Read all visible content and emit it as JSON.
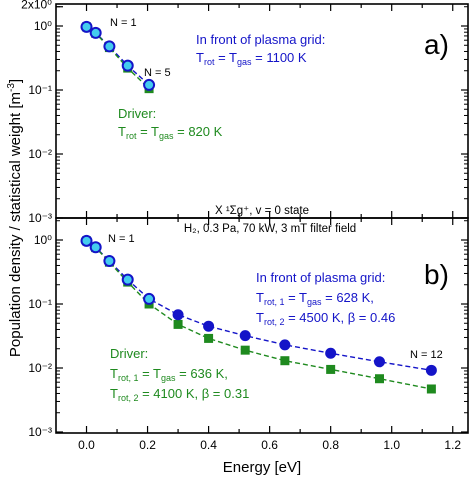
{
  "figure": {
    "ylabel": "Population density / statistical weight [m",
    "ylabel_unit_sup": "-3",
    "ylabel_tail": "]",
    "xlabel": "Energy [eV]",
    "center_title_line1": "X ¹Σg⁺, v = 0 state",
    "center_title_line2": "H₂, 0.3 Pa, 70 kW, 3 mT filter field",
    "colors": {
      "blue": "#1414c8",
      "green": "#1f8a1f",
      "cyan": "#44ccee",
      "text": "#000000"
    }
  },
  "chart_data": [
    {
      "type": "scatter",
      "panel_label": "a)",
      "ylog": true,
      "ylim": [
        0.001,
        2
      ],
      "yticks": [
        "2x10⁰",
        "10⁰",
        "10⁻¹",
        "10⁻²",
        "10⁻³"
      ],
      "xlim": [
        -0.1,
        1.25
      ],
      "xticks": [],
      "series": [
        {
          "name": "In front of plasma grid",
          "color": "#1414c8",
          "marker": "circle",
          "x": [
            0.0,
            0.03,
            0.075,
            0.135,
            0.205
          ],
          "y": [
            0.97,
            0.78,
            0.48,
            0.24,
            0.12
          ]
        },
        {
          "name": "Driver",
          "color": "#1f8a1f",
          "marker": "square",
          "x": [
            0.0,
            0.03,
            0.075,
            0.135,
            0.205
          ],
          "y": [
            0.97,
            0.77,
            0.46,
            0.22,
            0.105
          ]
        }
      ],
      "annotations": {
        "n_first": "N = 1",
        "n_last": "N = 5",
        "blue_title": "In front of plasma grid:",
        "blue_line1": {
          "t": "T",
          "s1": "rot",
          "eq": " = T",
          "s2": "gas",
          "val": " = 1100 K"
        },
        "green_title": "Driver:",
        "green_line1": {
          "t": "T",
          "s1": "rot",
          "eq": " = T",
          "s2": "gas",
          "val": " = 820 K"
        }
      }
    },
    {
      "type": "scatter",
      "panel_label": "b)",
      "ylog": true,
      "ylim": [
        0.001,
        2
      ],
      "yticks": [
        "10⁰",
        "10⁻¹",
        "10⁻²",
        "10⁻³"
      ],
      "xlim": [
        -0.1,
        1.25
      ],
      "xticks": [
        "0.0",
        "0.2",
        "0.4",
        "0.6",
        "0.8",
        "1.0",
        "1.2"
      ],
      "series": [
        {
          "name": "In front of plasma grid",
          "color": "#1414c8",
          "marker": "circle",
          "x": [
            0.0,
            0.03,
            0.075,
            0.135,
            0.205,
            0.3,
            0.4,
            0.52,
            0.65,
            0.8,
            0.96,
            1.13
          ],
          "y": [
            0.97,
            0.77,
            0.47,
            0.24,
            0.12,
            0.068,
            0.045,
            0.032,
            0.023,
            0.017,
            0.0125,
            0.0092
          ]
        },
        {
          "name": "Driver",
          "color": "#1f8a1f",
          "marker": "square",
          "x": [
            0.0,
            0.03,
            0.075,
            0.135,
            0.205,
            0.3,
            0.4,
            0.52,
            0.65,
            0.8,
            0.96,
            1.13
          ],
          "y": [
            0.97,
            0.76,
            0.45,
            0.22,
            0.1,
            0.048,
            0.029,
            0.019,
            0.013,
            0.0095,
            0.0068,
            0.0047
          ]
        }
      ],
      "annotations": {
        "n_first": "N = 1",
        "n_last": "N = 12",
        "blue_title": "In front of plasma grid:",
        "blue_line1": {
          "t": "T",
          "s1": "rot, 1",
          "eq": " = T",
          "s2": "gas",
          "val": " = 628 K,"
        },
        "blue_line2": {
          "t": "T",
          "s1": "rot, 2",
          "val": " = 4500 K, β = 0.46"
        },
        "green_title": "Driver:",
        "green_line1": {
          "t": "T",
          "s1": "rot, 1",
          "eq": " = T",
          "s2": "gas",
          "val": " = 636 K,"
        },
        "green_line2": {
          "t": "T",
          "s1": "rot, 2",
          "val": " = 4100 K, β = 0.31"
        }
      }
    }
  ]
}
